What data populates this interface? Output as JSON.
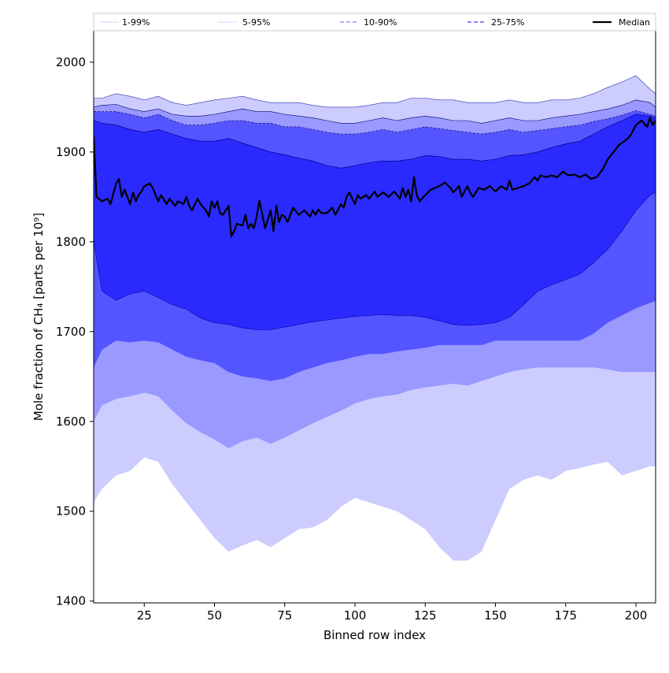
{
  "chart_data": {
    "type": "area",
    "xlabel": "Binned row index",
    "ylabel": "Mole fraction of CH₄ [parts per 10⁹]",
    "xlim": [
      7,
      207
    ],
    "ylim": [
      1398,
      2035
    ],
    "x_ticks": [
      25,
      50,
      75,
      100,
      125,
      150,
      175,
      200
    ],
    "y_ticks": [
      1400,
      1500,
      1600,
      1700,
      1800,
      1900,
      2000
    ],
    "legend_placement": "top",
    "grid": false,
    "legend": [
      {
        "label": "1-99%",
        "color": "#d8d8ff",
        "style": "solid"
      },
      {
        "label": "5-95%",
        "color": "#9c9cff",
        "style": "dotted"
      },
      {
        "label": "10-90%",
        "color": "#8080ff",
        "style": "dashed"
      },
      {
        "label": "25-75%",
        "color": "#3a3aff",
        "style": "dashed"
      },
      {
        "label": "Median",
        "color": "#000000",
        "style": "solid"
      }
    ],
    "x_key": [
      7,
      10,
      15,
      20,
      25,
      30,
      35,
      40,
      45,
      50,
      55,
      60,
      65,
      70,
      75,
      80,
      85,
      90,
      95,
      100,
      105,
      110,
      115,
      120,
      125,
      130,
      135,
      140,
      145,
      150,
      155,
      160,
      165,
      170,
      175,
      180,
      185,
      190,
      195,
      200,
      205,
      207
    ],
    "bands": [
      {
        "name": "1-99%",
        "color": "#ccccff",
        "upper": [
          1960,
          1960,
          1965,
          1962,
          1958,
          1962,
          1955,
          1952,
          1955,
          1958,
          1960,
          1962,
          1958,
          1955,
          1955,
          1955,
          1952,
          1950,
          1950,
          1950,
          1952,
          1955,
          1955,
          1960,
          1960,
          1958,
          1958,
          1955,
          1955,
          1955,
          1958,
          1955,
          1955,
          1958,
          1958,
          1960,
          1965,
          1972,
          1978,
          1985,
          1970,
          1965
        ],
        "lower": [
          1510,
          1525,
          1540,
          1545,
          1560,
          1555,
          1530,
          1510,
          1490,
          1470,
          1455,
          1462,
          1468,
          1460,
          1470,
          1480,
          1482,
          1490,
          1505,
          1515,
          1510,
          1505,
          1500,
          1490,
          1480,
          1460,
          1445,
          1445,
          1455,
          1490,
          1525,
          1535,
          1540,
          1535,
          1545,
          1548,
          1552,
          1555,
          1540,
          1545,
          1550,
          1550
        ]
      },
      {
        "name": "5-95%",
        "color": "#9999ff",
        "upper": [
          1950,
          1952,
          1953,
          1948,
          1945,
          1948,
          1942,
          1940,
          1940,
          1942,
          1945,
          1948,
          1945,
          1945,
          1942,
          1940,
          1938,
          1935,
          1932,
          1932,
          1935,
          1938,
          1935,
          1938,
          1940,
          1938,
          1935,
          1935,
          1932,
          1935,
          1938,
          1935,
          1935,
          1938,
          1940,
          1942,
          1945,
          1948,
          1952,
          1958,
          1955,
          1950
        ],
        "lower": [
          1600,
          1618,
          1625,
          1628,
          1632,
          1628,
          1612,
          1598,
          1588,
          1580,
          1570,
          1578,
          1582,
          1575,
          1582,
          1590,
          1598,
          1605,
          1612,
          1620,
          1625,
          1628,
          1630,
          1635,
          1638,
          1640,
          1642,
          1640,
          1645,
          1650,
          1655,
          1658,
          1660,
          1660,
          1660,
          1660,
          1660,
          1658,
          1655,
          1655,
          1655,
          1655
        ]
      },
      {
        "name": "10-90%",
        "color": "#5555ff",
        "upper": [
          1945,
          1945,
          1945,
          1942,
          1938,
          1942,
          1935,
          1930,
          1930,
          1932,
          1935,
          1935,
          1932,
          1932,
          1928,
          1928,
          1925,
          1922,
          1920,
          1920,
          1922,
          1925,
          1922,
          1925,
          1928,
          1926,
          1924,
          1922,
          1920,
          1922,
          1925,
          1922,
          1924,
          1926,
          1928,
          1930,
          1934,
          1937,
          1941,
          1946,
          1942,
          1940
        ],
        "lower": [
          1660,
          1680,
          1690,
          1688,
          1690,
          1688,
          1680,
          1672,
          1668,
          1665,
          1655,
          1650,
          1648,
          1645,
          1648,
          1655,
          1660,
          1665,
          1668,
          1672,
          1675,
          1675,
          1678,
          1680,
          1682,
          1685,
          1685,
          1685,
          1685,
          1690,
          1690,
          1690,
          1690,
          1690,
          1690,
          1690,
          1698,
          1710,
          1718,
          1726,
          1732,
          1734
        ]
      },
      {
        "name": "25-75%",
        "color": "#2a2aff",
        "upper": [
          1935,
          1932,
          1930,
          1925,
          1922,
          1925,
          1920,
          1915,
          1912,
          1912,
          1915,
          1910,
          1905,
          1900,
          1897,
          1893,
          1890,
          1885,
          1882,
          1885,
          1888,
          1890,
          1890,
          1892,
          1896,
          1895,
          1892,
          1892,
          1890,
          1892,
          1896,
          1897,
          1900,
          1905,
          1909,
          1912,
          1920,
          1928,
          1935,
          1942,
          1940,
          1938
        ],
        "lower": [
          1800,
          1745,
          1735,
          1742,
          1745,
          1738,
          1730,
          1725,
          1715,
          1710,
          1708,
          1704,
          1702,
          1702,
          1705,
          1708,
          1711,
          1713,
          1715,
          1717,
          1718,
          1719,
          1718,
          1718,
          1716,
          1712,
          1708,
          1707,
          1708,
          1710,
          1716,
          1730,
          1745,
          1752,
          1758,
          1764,
          1777,
          1792,
          1812,
          1835,
          1852,
          1855
        ]
      }
    ],
    "median": {
      "name": "Median",
      "color": "#000000",
      "x": [
        7,
        8,
        10,
        12,
        13,
        15,
        16,
        17,
        18,
        20,
        21,
        22,
        23,
        24,
        25,
        27,
        28,
        30,
        31,
        33,
        34,
        36,
        37,
        39,
        40,
        41,
        42,
        44,
        45,
        47,
        48,
        49,
        50,
        51,
        52,
        53,
        55,
        56,
        57,
        58,
        60,
        61,
        62,
        63,
        64,
        65,
        66,
        68,
        70,
        71,
        72,
        73,
        74,
        75,
        76,
        78,
        80,
        82,
        84,
        85,
        86,
        87,
        88,
        90,
        92,
        93,
        95,
        96,
        97,
        98,
        100,
        101,
        102,
        104,
        105,
        107,
        108,
        110,
        112,
        114,
        116,
        117,
        118,
        119,
        120,
        121,
        122,
        123,
        125,
        127,
        130,
        132,
        134,
        135,
        137,
        138,
        140,
        141,
        142,
        144,
        146,
        148,
        150,
        152,
        154,
        155,
        156,
        158,
        160,
        162,
        164,
        165,
        166,
        168,
        170,
        172,
        174,
        176,
        178,
        180,
        182,
        184,
        186,
        188,
        190,
        192,
        194,
        196,
        198,
        200,
        202,
        204,
        205,
        206,
        207
      ],
      "y": [
        1918,
        1850,
        1845,
        1848,
        1842,
        1865,
        1870,
        1850,
        1858,
        1842,
        1855,
        1845,
        1852,
        1856,
        1862,
        1865,
        1860,
        1845,
        1852,
        1842,
        1848,
        1840,
        1845,
        1842,
        1850,
        1840,
        1835,
        1848,
        1842,
        1835,
        1828,
        1845,
        1838,
        1845,
        1832,
        1830,
        1840,
        1806,
        1812,
        1820,
        1818,
        1830,
        1815,
        1820,
        1815,
        1828,
        1846,
        1815,
        1835,
        1812,
        1840,
        1822,
        1830,
        1828,
        1822,
        1838,
        1830,
        1835,
        1828,
        1835,
        1830,
        1836,
        1832,
        1832,
        1838,
        1830,
        1842,
        1838,
        1850,
        1855,
        1842,
        1852,
        1848,
        1852,
        1848,
        1856,
        1850,
        1855,
        1850,
        1856,
        1848,
        1860,
        1850,
        1858,
        1845,
        1872,
        1852,
        1845,
        1852,
        1858,
        1862,
        1866,
        1860,
        1855,
        1862,
        1850,
        1862,
        1855,
        1850,
        1860,
        1858,
        1862,
        1856,
        1862,
        1858,
        1868,
        1858,
        1860,
        1862,
        1865,
        1872,
        1868,
        1874,
        1872,
        1874,
        1872,
        1878,
        1874,
        1875,
        1872,
        1875,
        1870,
        1872,
        1880,
        1892,
        1900,
        1908,
        1912,
        1918,
        1930,
        1935,
        1928,
        1938,
        1930,
        1935
      ]
    }
  }
}
